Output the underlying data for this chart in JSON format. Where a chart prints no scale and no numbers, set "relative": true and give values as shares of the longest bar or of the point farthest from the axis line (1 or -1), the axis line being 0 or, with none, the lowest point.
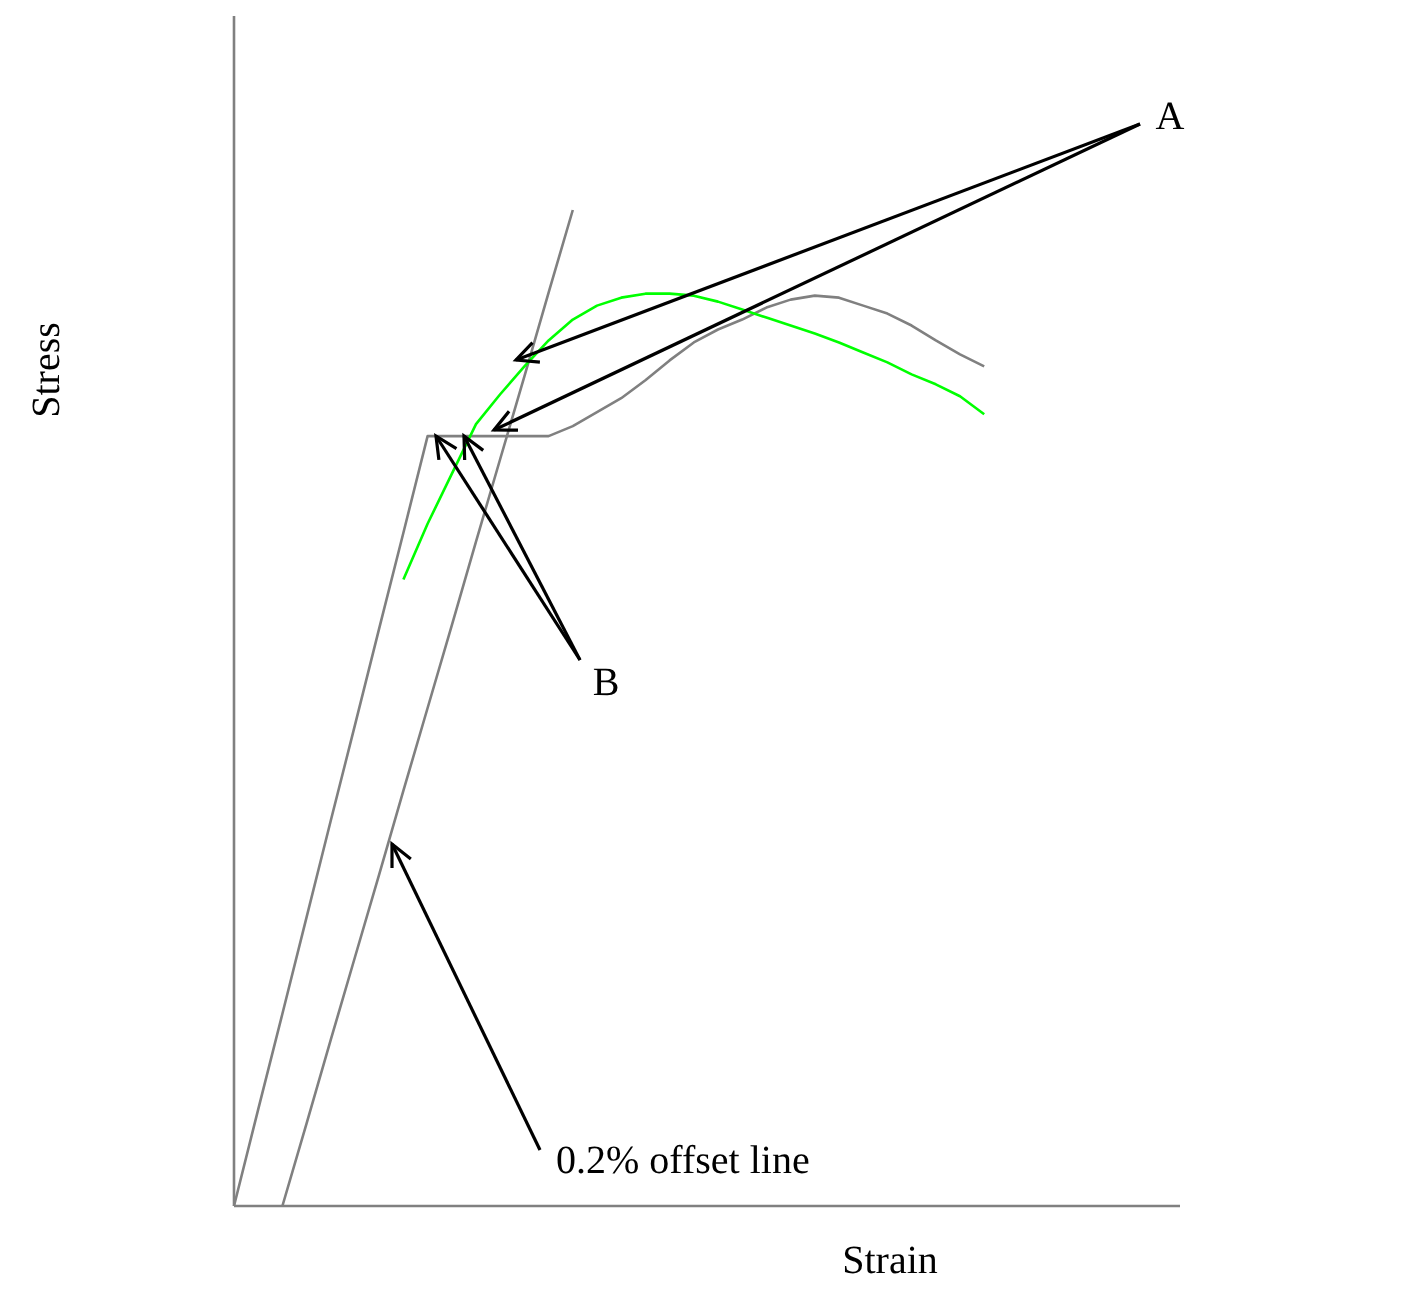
{
  "chart_data": {
    "type": "line",
    "relative": true,
    "xlabel": "Strain",
    "ylabel": "Stress",
    "categories": [
      null,
      null,
      null,
      null,
      null,
      null,
      null,
      null,
      null,
      null,
      null,
      null,
      null,
      null,
      null,
      null,
      null,
      null,
      null,
      null,
      null,
      null,
      null,
      null,
      null,
      null,
      null,
      null,
      null,
      null,
      null,
      null
    ],
    "series": [
      {
        "color": "#808080",
        "values": [
          0,
          0.097,
          0.193,
          0.29,
          0.387,
          0.483,
          0.58,
          0.676,
          0.773,
          0.773,
          0.773,
          0.773,
          0.773,
          0.773,
          0.783,
          0.797,
          0.811,
          0.829,
          0.849,
          0.867,
          0.88,
          0.89,
          0.902,
          0.91,
          0.914,
          0.912,
          0.904,
          0.896,
          0.884,
          0.869,
          0.855,
          0.843
        ]
      },
      {
        "color": "#808080",
        "values": [
          null,
          null,
          0,
          0.083,
          0.167,
          0.25,
          0.333,
          0.417,
          0.5,
          0.583,
          0.667,
          0.75,
          0.833,
          0.917,
          1,
          null,
          null,
          null,
          null,
          null,
          null,
          null,
          null,
          null,
          null,
          null,
          null,
          null,
          null,
          null,
          null,
          null
        ]
      },
      {
        "color": "#00ff00",
        "values": [
          null,
          null,
          null,
          null,
          null,
          null,
          null,
          0.629,
          0.685,
          0.735,
          0.785,
          0.815,
          0.843,
          0.869,
          0.89,
          0.904,
          0.912,
          0.916,
          0.916,
          0.914,
          0.908,
          0.9,
          0.892,
          0.884,
          0.876,
          0.867,
          0.857,
          0.847,
          0.835,
          0.825,
          0.813,
          0.795
        ]
      }
    ],
    "annotations": [
      "A",
      "B",
      "0.2% offset line"
    ]
  }
}
